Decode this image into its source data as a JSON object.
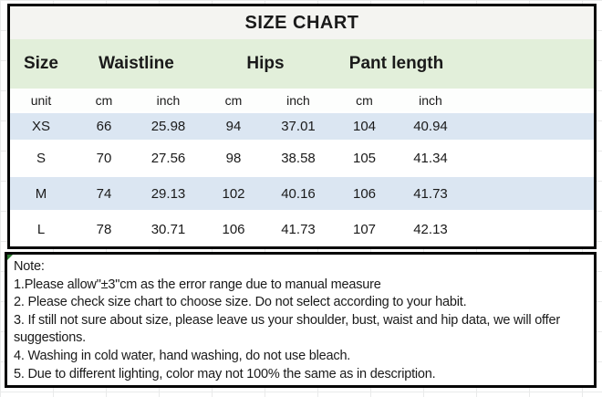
{
  "title": "SIZE CHART",
  "table": {
    "columns": {
      "size": "Size",
      "waistline": "Waistline",
      "hips": "Hips",
      "pant_length": "Pant length"
    },
    "unit_row": {
      "label": "unit",
      "waist_cm": "cm",
      "waist_inch": "inch",
      "hips_cm": "cm",
      "hips_inch": "inch",
      "pant_cm": "cm",
      "pant_inch": "inch"
    },
    "rows": [
      {
        "size": "XS",
        "waist_cm": "66",
        "waist_inch": "25.98",
        "hips_cm": "94",
        "hips_inch": "37.01",
        "pant_cm": "104",
        "pant_inch": "40.94"
      },
      {
        "size": "S",
        "waist_cm": "70",
        "waist_inch": "27.56",
        "hips_cm": "98",
        "hips_inch": "38.58",
        "pant_cm": "105",
        "pant_inch": "41.34"
      },
      {
        "size": "M",
        "waist_cm": "74",
        "waist_inch": "29.13",
        "hips_cm": "102",
        "hips_inch": "40.16",
        "pant_cm": "106",
        "pant_inch": "41.73"
      },
      {
        "size": "L",
        "waist_cm": "78",
        "waist_inch": "30.71",
        "hips_cm": "106",
        "hips_inch": "41.73",
        "pant_cm": "107",
        "pant_inch": "42.13"
      }
    ]
  },
  "note": {
    "heading": "Note:",
    "lines": [
      "1.Please allow\"±3\"cm as the error range due to manual measure",
      "2. Please check size chart to choose size. Do not select according to your habit.",
      "3. If still not sure about size, please leave us your shoulder, bust, waist and hip data, we will offer",
      "suggestions.",
      "4. Washing in cold water, hand washing, do not use bleach.",
      "5. Due to different lighting, color may not 100% the same as in description."
    ]
  },
  "colors": {
    "header_green": "#e2efda",
    "row_blue": "#dbe6f2",
    "title_strip": "#f4f4f1",
    "border": "#050505",
    "corner_marker_green": "#2e7d32"
  }
}
